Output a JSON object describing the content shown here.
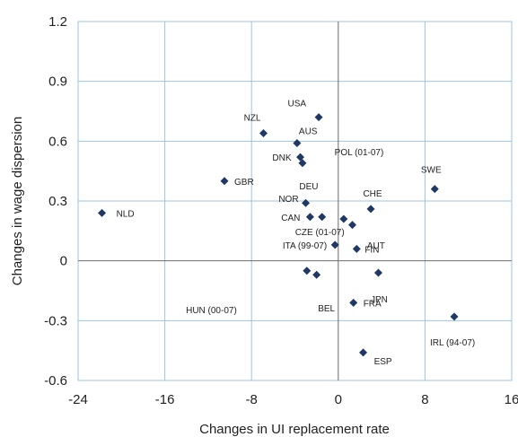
{
  "chart_data": {
    "type": "scatter",
    "xlabel": "Changes in UI replacement rate",
    "ylabel": "Changes in wage dispersion",
    "xlim": [
      -24,
      16
    ],
    "ylim": [
      -0.6,
      1.2
    ],
    "xticks": [
      -24,
      -16,
      -8,
      0,
      8,
      16
    ],
    "yticks": [
      1.2,
      0.9,
      0.6,
      0.3,
      0,
      -0.3,
      -0.6
    ],
    "xtick_labels": [
      "-24",
      "-16",
      "-8",
      "0",
      "8",
      "16"
    ],
    "ytick_labels": [
      "1.2",
      "0.9",
      "0.6",
      "0.3",
      "0",
      "-0.3",
      "-0.6"
    ],
    "grid": true,
    "legend": "none",
    "marker": "diamond",
    "marker_color": "#1f3864",
    "points": [
      {
        "label": "USA",
        "x": -1.8,
        "y": 0.72
      },
      {
        "label": "NZL",
        "x": -6.9,
        "y": 0.64
      },
      {
        "label": "AUS",
        "x": -3.8,
        "y": 0.59
      },
      {
        "label": "DNK",
        "x": -3.5,
        "y": 0.52
      },
      {
        "label": "DEU",
        "x": -3.3,
        "y": 0.49
      },
      {
        "label": "POL (01-07)",
        "x": null,
        "y": null
      },
      {
        "label": "GBR",
        "x": -10.5,
        "y": 0.4
      },
      {
        "label": "SWE",
        "x": 8.9,
        "y": 0.36
      },
      {
        "label": "NLD",
        "x": -21.8,
        "y": 0.24
      },
      {
        "label": "NOR",
        "x": -3.0,
        "y": 0.29
      },
      {
        "label": "CHE",
        "x": 3.0,
        "y": 0.26
      },
      {
        "label": "CAN",
        "x": -2.6,
        "y": 0.22
      },
      {
        "label": "CZE (01-07)",
        "x": -1.5,
        "y": 0.22
      },
      {
        "label": "AUT",
        "x": 0.5,
        "y": 0.21
      },
      {
        "label": null,
        "x": 1.3,
        "y": 0.18
      },
      {
        "label": "ITA (99-07)",
        "x": -0.3,
        "y": 0.08
      },
      {
        "label": "FIN",
        "x": 1.7,
        "y": 0.06
      },
      {
        "label": "HUN (00-07)",
        "x": -2.9,
        "y": -0.05
      },
      {
        "label": "BEL",
        "x": -2.0,
        "y": -0.07
      },
      {
        "label": "JPN",
        "x": 3.7,
        "y": -0.06
      },
      {
        "label": "FRA",
        "x": 1.4,
        "y": -0.21
      },
      {
        "label": "IRL (94-07)",
        "x": 10.7,
        "y": -0.28
      },
      {
        "label": "ESP",
        "x": 2.3,
        "y": -0.46
      }
    ]
  }
}
